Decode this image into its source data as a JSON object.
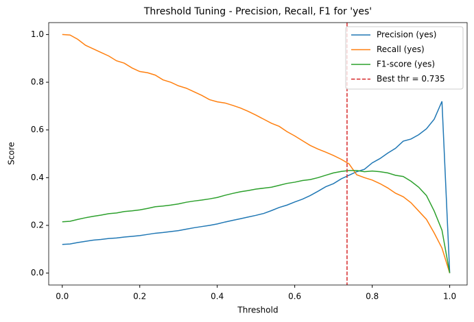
{
  "chart_data": {
    "type": "line",
    "title": "Threshold Tuning - Precision, Recall, F1 for 'yes'",
    "x_label": "Threshold",
    "y_label": "Score",
    "x": [
      0,
      0.02,
      0.04,
      0.06,
      0.08,
      0.1,
      0.12,
      0.14,
      0.16,
      0.18,
      0.2,
      0.22,
      0.24,
      0.26,
      0.28,
      0.3,
      0.32,
      0.34,
      0.36,
      0.38,
      0.4,
      0.42,
      0.44,
      0.46,
      0.48,
      0.5,
      0.52,
      0.54,
      0.56,
      0.58,
      0.6,
      0.62,
      0.64,
      0.66,
      0.68,
      0.7,
      0.72,
      0.74,
      0.76,
      0.78,
      0.8,
      0.82,
      0.84,
      0.86,
      0.88,
      0.9,
      0.92,
      0.94,
      0.96,
      0.98,
      1.0
    ],
    "series": [
      {
        "name": "Precision (yes)",
        "color": "#1f77b4",
        "values": [
          0.12,
          0.122,
          0.128,
          0.133,
          0.138,
          0.141,
          0.145,
          0.147,
          0.151,
          0.154,
          0.157,
          0.162,
          0.167,
          0.17,
          0.174,
          0.178,
          0.184,
          0.19,
          0.195,
          0.2,
          0.206,
          0.214,
          0.221,
          0.228,
          0.235,
          0.242,
          0.25,
          0.262,
          0.275,
          0.285,
          0.298,
          0.31,
          0.325,
          0.343,
          0.362,
          0.375,
          0.395,
          0.41,
          0.425,
          0.435,
          0.462,
          0.48,
          0.503,
          0.523,
          0.553,
          0.562,
          0.58,
          0.605,
          0.645,
          0.72,
          0.0
        ]
      },
      {
        "name": "Recall (yes)",
        "color": "#ff7f0e",
        "values": [
          1.0,
          0.998,
          0.98,
          0.955,
          0.94,
          0.925,
          0.91,
          0.89,
          0.88,
          0.86,
          0.845,
          0.84,
          0.83,
          0.81,
          0.8,
          0.785,
          0.775,
          0.76,
          0.745,
          0.727,
          0.718,
          0.713,
          0.703,
          0.692,
          0.678,
          0.662,
          0.645,
          0.628,
          0.615,
          0.593,
          0.575,
          0.555,
          0.535,
          0.52,
          0.507,
          0.493,
          0.477,
          0.458,
          0.412,
          0.4,
          0.39,
          0.375,
          0.357,
          0.335,
          0.32,
          0.295,
          0.26,
          0.225,
          0.168,
          0.105,
          0.0
        ]
      },
      {
        "name": "F1-score (yes)",
        "color": "#2ca02c",
        "values": [
          0.215,
          0.217,
          0.225,
          0.232,
          0.238,
          0.243,
          0.249,
          0.252,
          0.258,
          0.261,
          0.265,
          0.271,
          0.278,
          0.281,
          0.285,
          0.29,
          0.297,
          0.302,
          0.306,
          0.311,
          0.317,
          0.326,
          0.334,
          0.341,
          0.346,
          0.352,
          0.356,
          0.36,
          0.368,
          0.376,
          0.381,
          0.388,
          0.392,
          0.4,
          0.41,
          0.42,
          0.426,
          0.43,
          0.43,
          0.425,
          0.428,
          0.425,
          0.42,
          0.41,
          0.405,
          0.385,
          0.36,
          0.325,
          0.26,
          0.18,
          0.0
        ]
      }
    ],
    "reference_line": {
      "value": 0.735,
      "label": "Best thr = 0.735",
      "color": "#d62728"
    },
    "xlim": [
      -0.035,
      1.045
    ],
    "ylim": [
      -0.05,
      1.05
    ],
    "xticks": [
      {
        "value": 0,
        "label": "0.0"
      },
      0.2,
      0.4,
      0.6,
      0.8,
      {
        "value": 1,
        "label": "1.0"
      }
    ],
    "yticks": [
      {
        "value": 0,
        "label": "0.0"
      },
      0.2,
      0.4,
      0.6,
      0.8,
      {
        "value": 1,
        "label": "1.0"
      }
    ],
    "legend": "upper right",
    "grid": false
  }
}
